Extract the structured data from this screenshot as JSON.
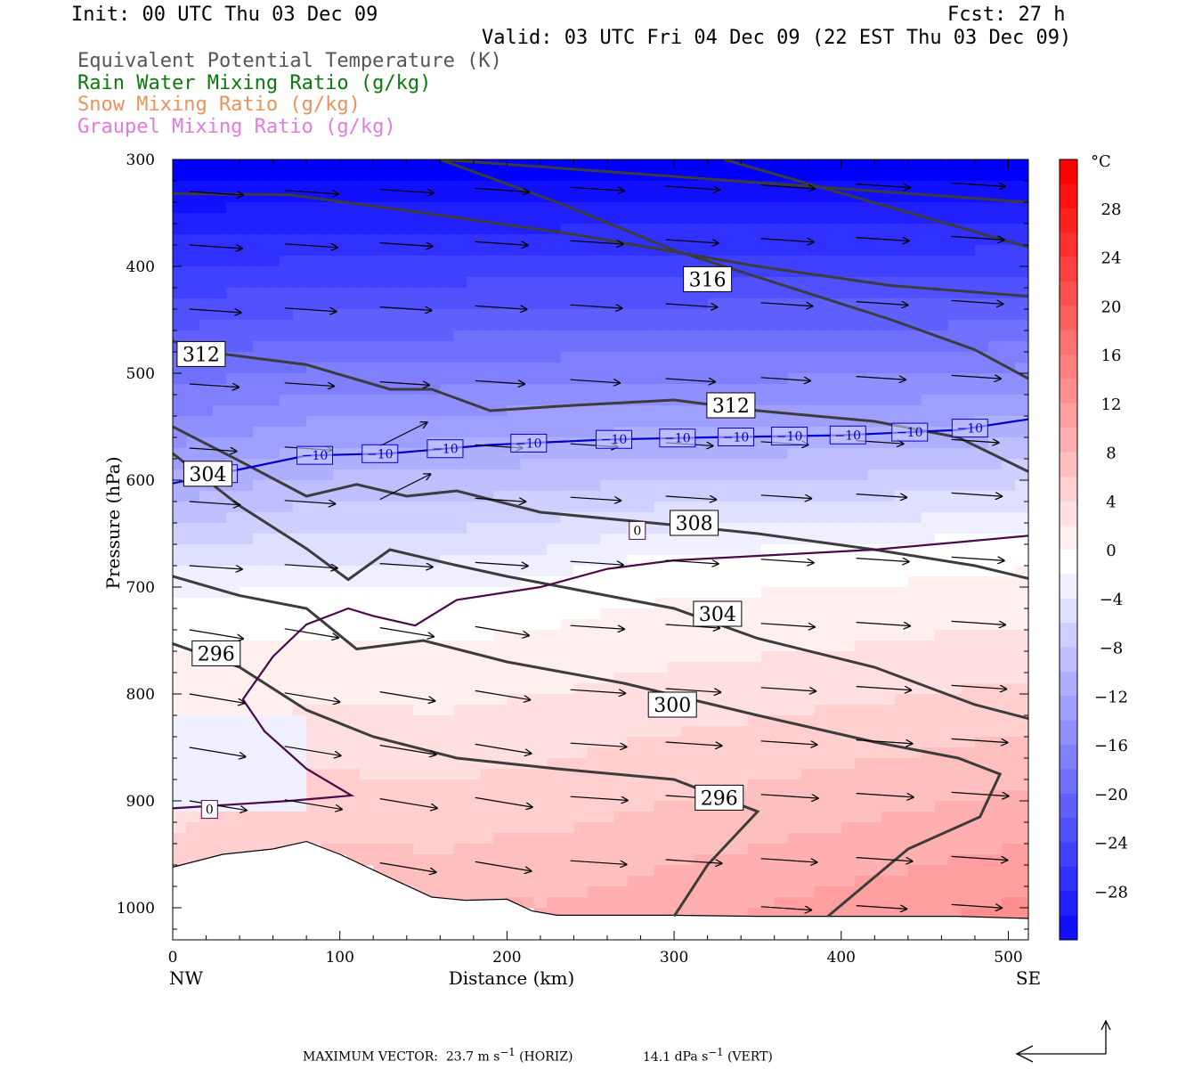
{
  "header": {
    "init": "Init: 00 UTC Thu 03 Dec 09",
    "fcst": "Fcst:   27 h",
    "valid": "Valid: 03 UTC Fri 04 Dec 09 (22 EST Thu 03 Dec 09)"
  },
  "fields": [
    {
      "label": "Equivalent Potential Temperature (K)",
      "color": "#555555"
    },
    {
      "label": "Rain Water Mixing Ratio (g/kg)",
      "color": "#0a7a0a"
    },
    {
      "label": "Snow Mixing Ratio (g/kg)",
      "color": "#e8935c"
    },
    {
      "label": "Graupel Mixing Ratio (g/kg)",
      "color": "#e27be0"
    }
  ],
  "chart_data": {
    "type": "heatmap",
    "xlabel": "Distance (km)",
    "ylabel": "Pressure (hPa)",
    "xlim": [
      0,
      512
    ],
    "ylim": [
      1030,
      300
    ],
    "y_inverted": true,
    "x_ticks": [
      0,
      100,
      200,
      300,
      400,
      500
    ],
    "y_ticks": [
      300,
      400,
      500,
      600,
      700,
      800,
      900,
      1000
    ],
    "x_end_labels": {
      "left": "NW",
      "right": "SE"
    },
    "colorbar": {
      "unit": "°C",
      "min": -32,
      "max": 32,
      "tick_values": [
        28,
        24,
        20,
        16,
        12,
        8,
        4,
        0,
        -4,
        -8,
        -12,
        -16,
        -20,
        -24,
        -28
      ],
      "tick_labels": [
        "28",
        "24",
        "20",
        "16",
        "12",
        "8",
        "4",
        "0",
        "−4",
        "−8",
        "−12",
        "−16",
        "−20",
        "−24",
        "−28"
      ],
      "cold_color": "#0000ff",
      "neutral_color": "#ffffff",
      "warm_color": "#ff0000"
    },
    "theta_e_contours": [
      {
        "label": "316",
        "label_at": [
          320,
          412
        ],
        "points": [
          [
            160,
            300
          ],
          [
            230,
            340
          ],
          [
            300,
            385
          ],
          [
            370,
            420
          ],
          [
            430,
            450
          ],
          [
            480,
            478
          ],
          [
            512,
            505
          ]
        ]
      },
      {
        "label": "312",
        "label_at": [
          17,
          482
        ],
        "points": [
          [
            0,
            470
          ],
          [
            30,
            482
          ],
          [
            80,
            492
          ],
          [
            130,
            515
          ],
          [
            155,
            515
          ],
          [
            190,
            535
          ],
          [
            240,
            530
          ],
          [
            300,
            525
          ],
          [
            350,
            535
          ],
          [
            420,
            545
          ],
          [
            470,
            560
          ],
          [
            512,
            592
          ]
        ]
      },
      {
        "label": "312",
        "label_at": [
          334,
          530
        ],
        "points": []
      },
      {
        "label": "308",
        "label_at": [
          312,
          640
        ],
        "points": [
          [
            0,
            550
          ],
          [
            40,
            582
          ],
          [
            80,
            615
          ],
          [
            110,
            604
          ],
          [
            140,
            615
          ],
          [
            170,
            610
          ],
          [
            220,
            630
          ],
          [
            300,
            642
          ],
          [
            350,
            650
          ],
          [
            420,
            665
          ],
          [
            480,
            680
          ],
          [
            512,
            692
          ]
        ]
      },
      {
        "label": "304",
        "label_at": [
          21,
          594
        ],
        "points": [
          [
            0,
            575
          ],
          [
            40,
            624
          ],
          [
            80,
            664
          ],
          [
            105,
            693
          ],
          [
            130,
            665
          ],
          [
            165,
            678
          ],
          [
            200,
            690
          ],
          [
            260,
            708
          ],
          [
            300,
            720
          ],
          [
            350,
            748
          ],
          [
            420,
            775
          ],
          [
            480,
            810
          ],
          [
            512,
            823
          ]
        ]
      },
      {
        "label": "304",
        "label_at": [
          326,
          725
        ],
        "points": []
      },
      {
        "label": "300",
        "label_at": [
          299,
          810
        ],
        "points": [
          [
            0,
            690
          ],
          [
            40,
            708
          ],
          [
            80,
            720
          ],
          [
            110,
            758
          ],
          [
            150,
            750
          ],
          [
            200,
            770
          ],
          [
            270,
            790
          ],
          [
            350,
            820
          ],
          [
            420,
            845
          ],
          [
            470,
            860
          ],
          [
            495,
            875
          ],
          [
            483,
            915
          ],
          [
            440,
            945
          ],
          [
            392,
            1008
          ]
        ]
      },
      {
        "label": "296",
        "label_at": [
          26,
          762
        ],
        "points": [
          [
            0,
            753
          ],
          [
            40,
            775
          ],
          [
            80,
            815
          ],
          [
            120,
            840
          ],
          [
            170,
            860
          ],
          [
            230,
            870
          ],
          [
            300,
            880
          ],
          [
            350,
            910
          ],
          [
            320,
            960
          ],
          [
            300,
            1008
          ]
        ]
      },
      {
        "label": "296",
        "label_at": [
          327,
          897
        ],
        "points": []
      }
    ],
    "isotherms": [
      {
        "value": -10,
        "color": "#0000cc",
        "points": [
          [
            0,
            603
          ],
          [
            40,
            590
          ],
          [
            80,
            577
          ],
          [
            130,
            575
          ],
          [
            190,
            567
          ],
          [
            260,
            562
          ],
          [
            320,
            560
          ],
          [
            400,
            558
          ],
          [
            470,
            553
          ],
          [
            512,
            543
          ]
        ],
        "label_positions": [
          28,
          85,
          124,
          163,
          213,
          264,
          302,
          337,
          369,
          404,
          441,
          477
        ]
      },
      {
        "value": 0,
        "color": "#4a0a4a",
        "points": [
          [
            512,
            652
          ],
          [
            470,
            658
          ],
          [
            420,
            665
          ],
          [
            360,
            670
          ],
          [
            300,
            675
          ],
          [
            260,
            683
          ],
          [
            220,
            700
          ],
          [
            170,
            712
          ],
          [
            145,
            736
          ],
          [
            120,
            727
          ],
          [
            105,
            720
          ],
          [
            80,
            735
          ],
          [
            60,
            765
          ],
          [
            42,
            805
          ],
          [
            55,
            835
          ],
          [
            80,
            870
          ],
          [
            107,
            895
          ],
          [
            70,
            900
          ],
          [
            20,
            905
          ],
          [
            0,
            907
          ]
        ],
        "label_positions": [
          [
            278,
            647
          ],
          [
            22,
            908
          ]
        ]
      }
    ],
    "terrain": [
      [
        0,
        962
      ],
      [
        30,
        950
      ],
      [
        60,
        945
      ],
      [
        80,
        938
      ],
      [
        100,
        950
      ],
      [
        130,
        972
      ],
      [
        155,
        990
      ],
      [
        175,
        993
      ],
      [
        200,
        992
      ],
      [
        215,
        1003
      ],
      [
        230,
        1007
      ],
      [
        260,
        1007
      ],
      [
        300,
        1007
      ],
      [
        350,
        1008
      ],
      [
        400,
        1008
      ],
      [
        470,
        1008
      ],
      [
        512,
        1010
      ]
    ],
    "max_vector_label": "MAXIMUM VECTOR:",
    "max_vector_horiz": {
      "value": "23.7",
      "unit": "m s",
      "exponent": "−1",
      "tag": "(HORIZ)"
    },
    "max_vector_vert": {
      "value": "14.1",
      "unit": "dPa s",
      "exponent": "−1",
      "tag": "(VERT)"
    }
  }
}
